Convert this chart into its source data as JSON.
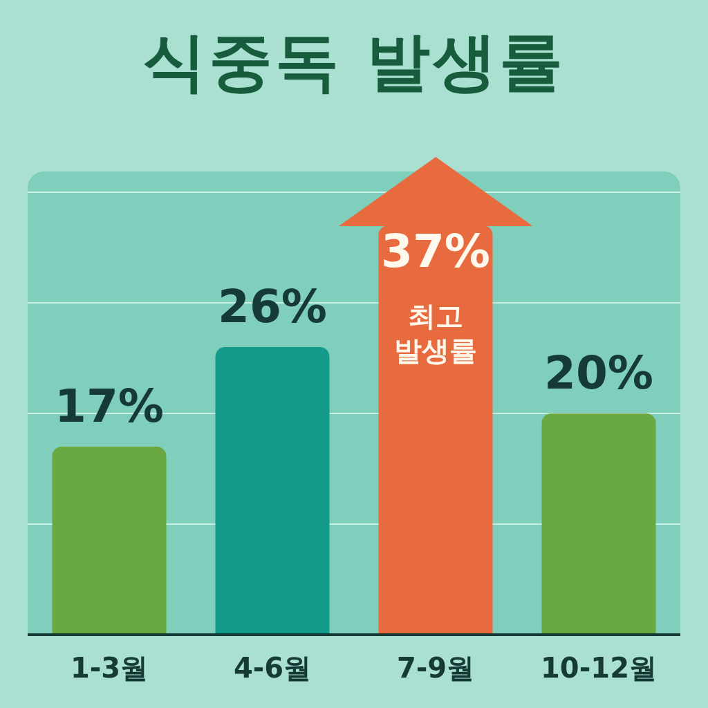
{
  "chart_data": {
    "type": "bar",
    "title": "식중독 발생률",
    "categories": [
      "1-3월",
      "4-6월",
      "7-9월",
      "10-12월"
    ],
    "values": [
      17,
      26,
      37,
      20
    ],
    "colors": [
      "#6aa842",
      "#149a8a",
      "#e86b40",
      "#6aa842"
    ],
    "value_labels": [
      "17%",
      "26%",
      "37%",
      "20%"
    ],
    "annotations": [
      "최고 발생률"
    ],
    "ylim": [
      0,
      40
    ],
    "yticks": [
      {
        "value": 10,
        "label": null
      },
      {
        "value": 20,
        "label": null
      },
      {
        "value": 30,
        "label": null
      },
      {
        "value": 40,
        "label": null
      }
    ],
    "grid": "y",
    "tick_labels": "x",
    "legend": false
  }
}
